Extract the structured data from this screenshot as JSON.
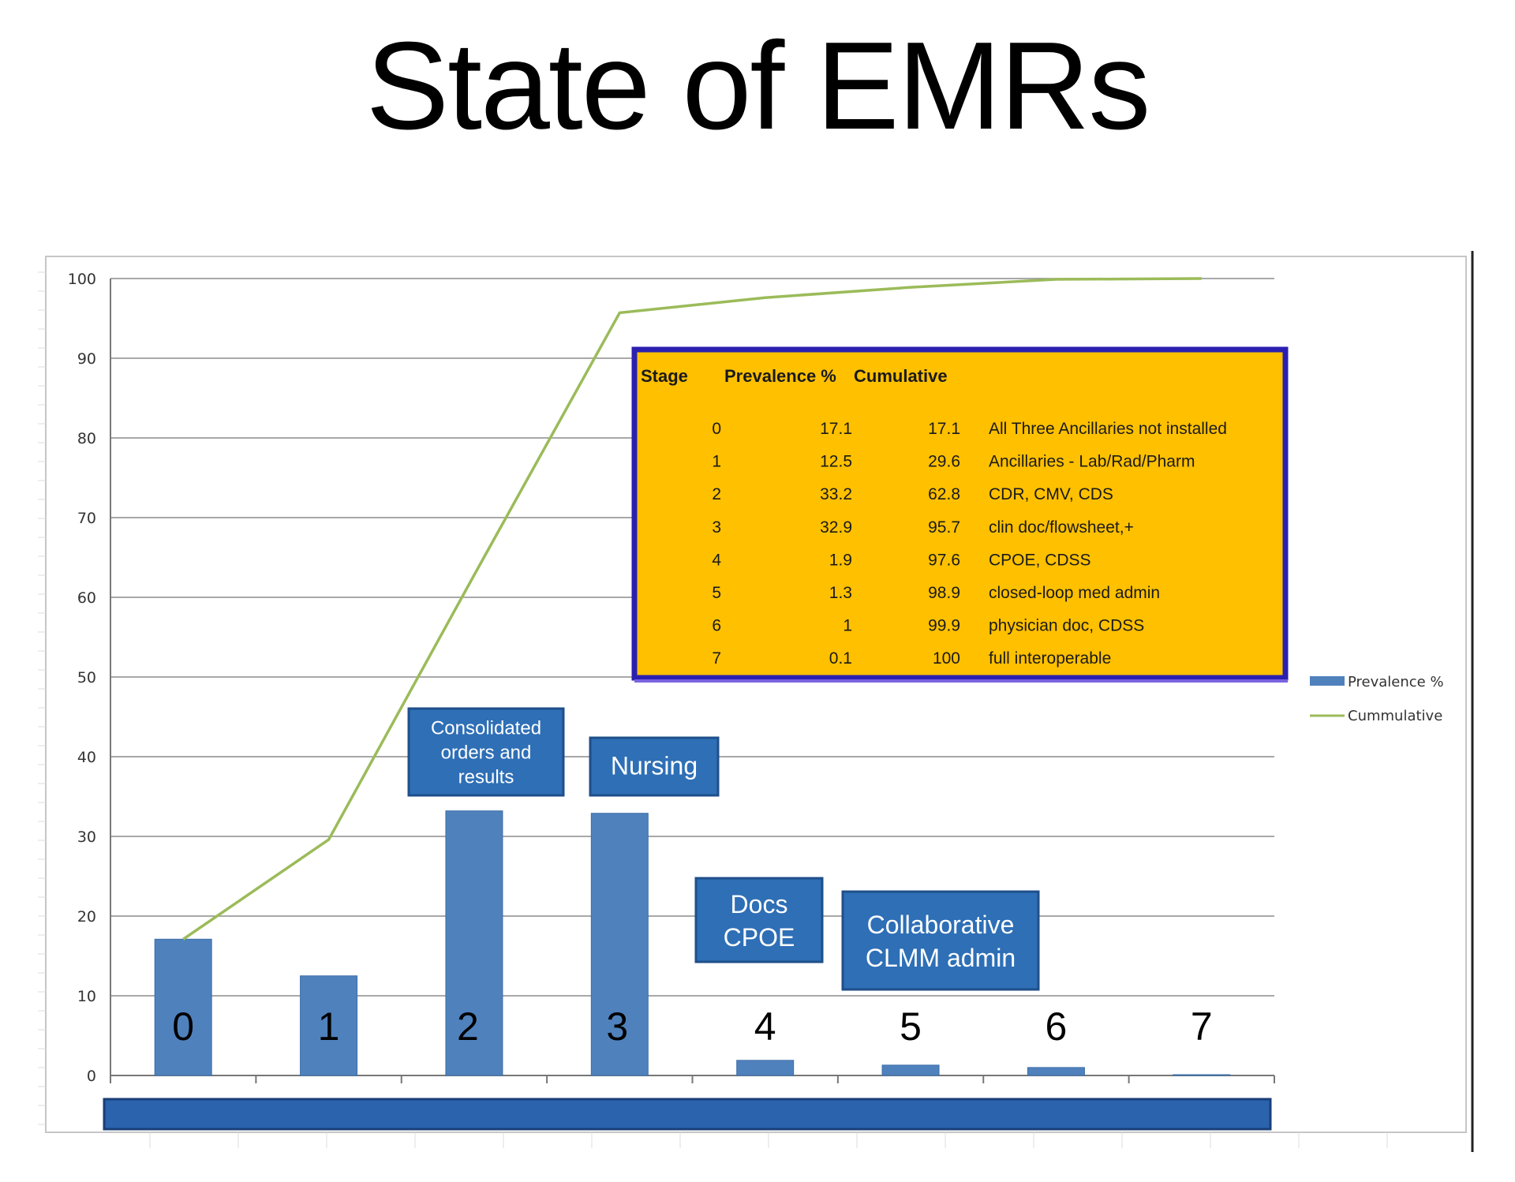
{
  "slide_title": "State of EMRs",
  "colors": {
    "bar": "#4f81bd",
    "bar_edge": "#3d6fa8",
    "line": "#9bbb59",
    "callout_fill": "#2e6fb6",
    "callout_edge": "#1f4f8a",
    "table_fill": "#ffc000",
    "table_border": "#2b1fb0",
    "bottom_bar": "#2b63ad",
    "grid": "#8c8c8c"
  },
  "chart_data": {
    "type": "bar",
    "categories": [
      "0",
      "1",
      "2",
      "3",
      "4",
      "5",
      "6",
      "7"
    ],
    "series": [
      {
        "name": "Prevalence %",
        "type": "bar",
        "values": [
          17.1,
          12.5,
          33.2,
          32.9,
          1.9,
          1.3,
          1,
          0.1
        ]
      },
      {
        "name": "Cummulative",
        "type": "line",
        "values": [
          17.1,
          29.6,
          62.8,
          95.7,
          97.6,
          98.9,
          99.9,
          100
        ]
      }
    ],
    "ylim": [
      0,
      100
    ],
    "yticks": [
      "0",
      "10",
      "20",
      "30",
      "40",
      "50",
      "60",
      "70",
      "80",
      "90",
      "100"
    ],
    "grid": true,
    "legend": {
      "position": "right",
      "entries": [
        "Prevalence %",
        "Cummulative"
      ]
    },
    "annotations": [
      {
        "id": "callout-stage-2",
        "lines": [
          "Consolidated",
          "orders and",
          "results"
        ]
      },
      {
        "id": "callout-stage-3",
        "lines": [
          "Nursing"
        ]
      },
      {
        "id": "callout-stage-4",
        "lines": [
          "Docs",
          "CPOE"
        ]
      },
      {
        "id": "callout-stage-5",
        "lines": [
          "Collaborative",
          "CLMM admin"
        ]
      }
    ],
    "table": {
      "headers": [
        "Stage",
        "Prevalence %",
        "Cumulative"
      ],
      "rows": [
        {
          "stage": "0",
          "prevalence": "17.1",
          "cumulative": "17.1",
          "description": "All Three Ancillaries not installed"
        },
        {
          "stage": "1",
          "prevalence": "12.5",
          "cumulative": "29.6",
          "description": "Ancillaries - Lab/Rad/Pharm"
        },
        {
          "stage": "2",
          "prevalence": "33.2",
          "cumulative": "62.8",
          "description": "CDR, CMV, CDS"
        },
        {
          "stage": "3",
          "prevalence": "32.9",
          "cumulative": "95.7",
          "description": "clin doc/flowsheet,+"
        },
        {
          "stage": "4",
          "prevalence": "1.9",
          "cumulative": "97.6",
          "description": "CPOE, CDSS"
        },
        {
          "stage": "5",
          "prevalence": "1.3",
          "cumulative": "98.9",
          "description": "closed-loop med admin"
        },
        {
          "stage": "6",
          "prevalence": "1",
          "cumulative": "99.9",
          "description": "physician doc, CDSS"
        },
        {
          "stage": "7",
          "prevalence": "0.1",
          "cumulative": "100",
          "description": "full interoperable"
        }
      ]
    }
  }
}
